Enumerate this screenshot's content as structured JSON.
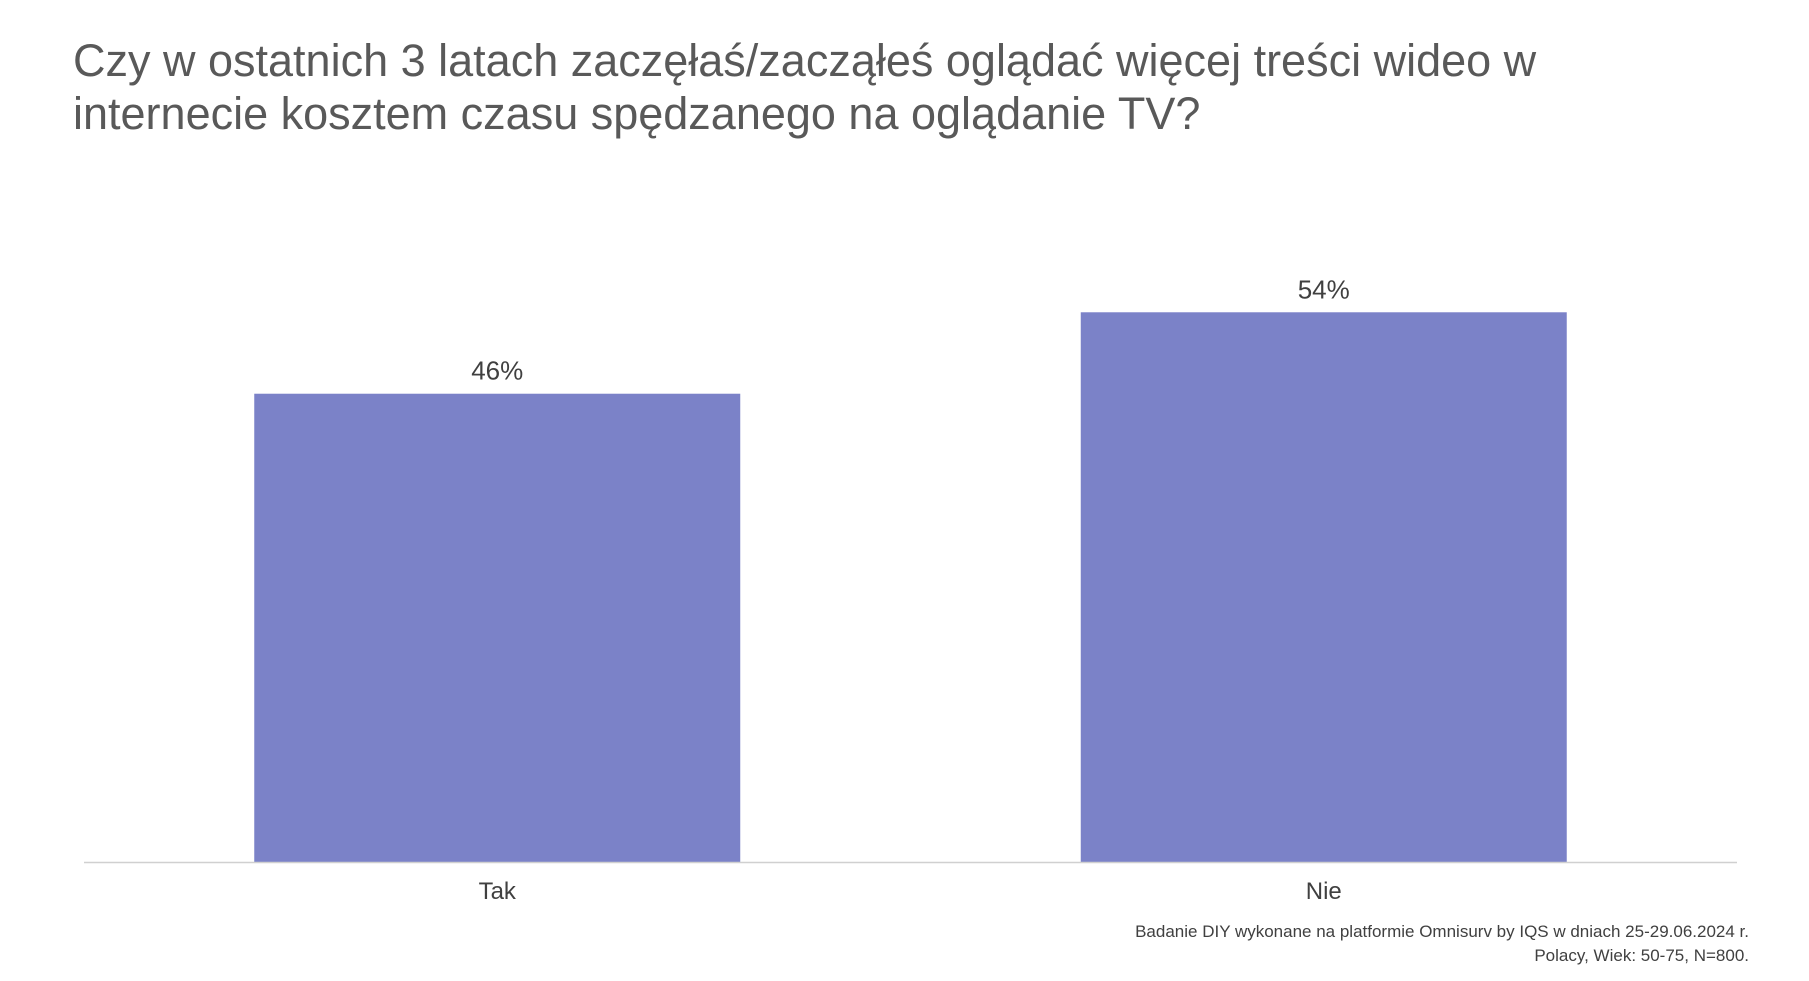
{
  "title": "Czy w ostatnich 3 latach zaczęłaś/zacząłeś oglądać więcej treści wideo w internecie kosztem czasu spędzanego na oglądanie TV?",
  "source": {
    "line1": "Badanie DIY wykonane na platformie Omnisurv by IQS w dniach 25-29.06.2024 r.",
    "line2": "Polacy, Wiek: 50-75, N=800."
  },
  "colors": {
    "bar": "#7B82C8",
    "axis": "#D0D0D0",
    "title": "#595959",
    "text": "#404040"
  },
  "chart_data": {
    "type": "bar",
    "title": "Czy w ostatnich 3 latach zaczęłaś/zacząłeś oglądać więcej treści wideo w internecie kosztem czasu spędzanego na oglądanie TV?",
    "categories": [
      "Tak",
      "Nie"
    ],
    "values": [
      46,
      54
    ],
    "value_labels": [
      "46%",
      "54%"
    ],
    "unit": "%",
    "ylim": [
      0,
      62
    ],
    "grid": false,
    "legend": "none",
    "xlabel": "",
    "ylabel": ""
  }
}
